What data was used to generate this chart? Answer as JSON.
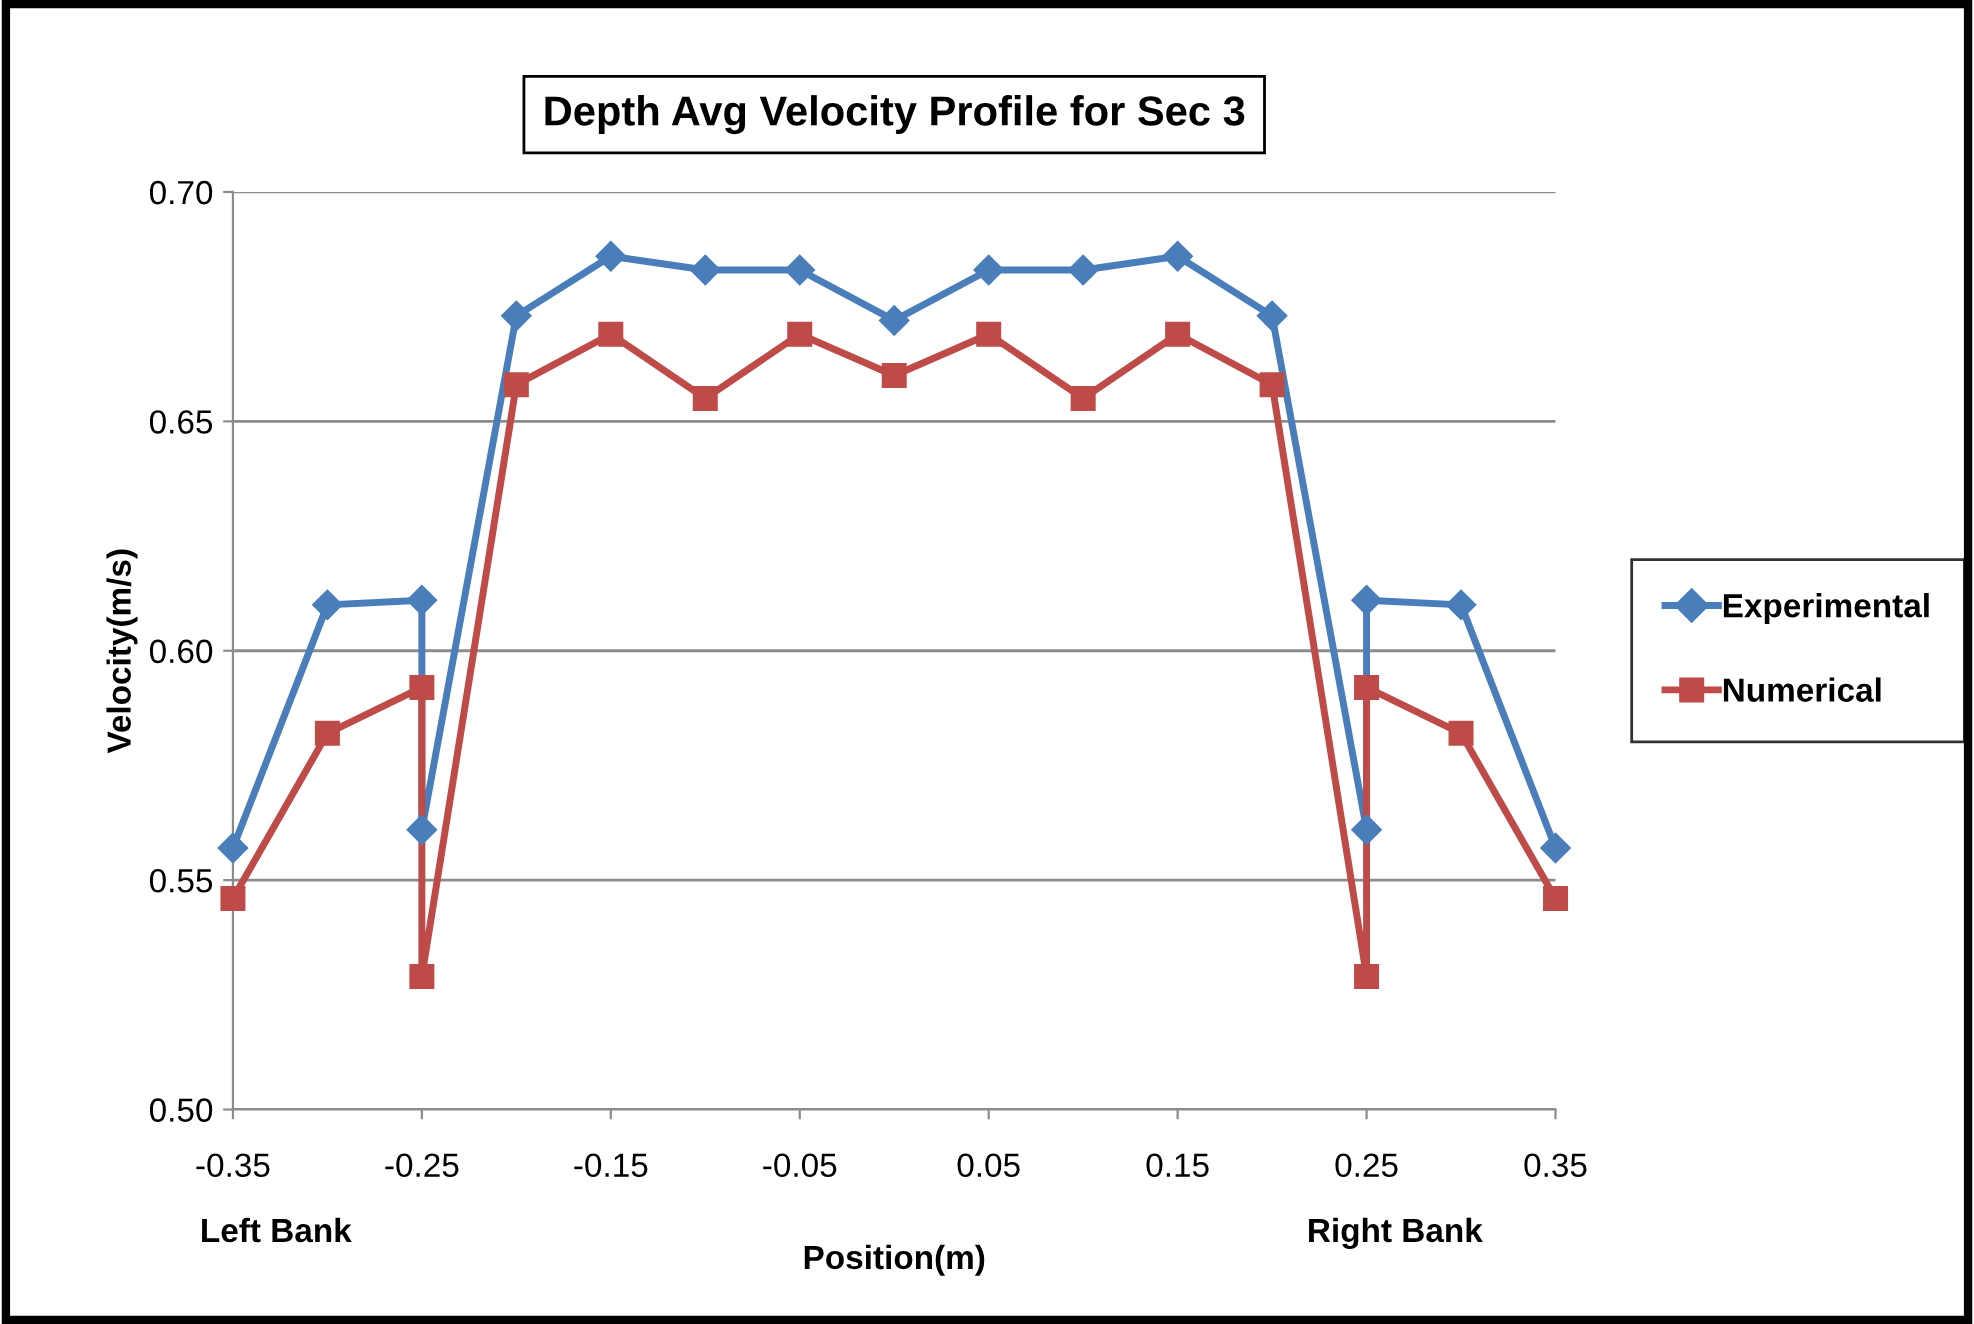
{
  "chart_data": {
    "type": "line",
    "title": "Depth Avg Velocity Profile for Sec 3",
    "xlabel": "Position(m)",
    "ylabel": "Velocity(m/s)",
    "annotations": [
      "Left Bank",
      "Right Bank"
    ],
    "x": [
      -0.35,
      -0.3,
      -0.25,
      -0.25,
      -0.2,
      -0.15,
      -0.1,
      -0.05,
      0,
      0.05,
      0.1,
      0.15,
      0.2,
      0.25,
      0.25,
      0.3,
      0.35
    ],
    "series": [
      {
        "name": "Experimental",
        "color": "#4a7ebb",
        "marker": "diamond",
        "values": [
          0.557,
          0.61,
          0.611,
          0.561,
          0.673,
          0.686,
          0.683,
          0.683,
          0.672,
          0.683,
          0.683,
          0.686,
          0.673,
          0.561,
          0.611,
          0.61,
          0.557
        ]
      },
      {
        "name": "Numerical",
        "color": "#be4b48",
        "marker": "square",
        "values": [
          0.546,
          0.582,
          0.592,
          0.529,
          0.658,
          0.669,
          0.655,
          0.669,
          0.66,
          0.669,
          0.655,
          0.669,
          0.658,
          0.529,
          0.592,
          0.582,
          0.546
        ]
      }
    ],
    "xlim": [
      -0.35,
      0.35
    ],
    "xticks": [
      {
        "value": -0.35,
        "label": "-0.35"
      },
      {
        "value": -0.25,
        "label": "-0.25"
      },
      {
        "value": -0.15,
        "label": "-0.15"
      },
      {
        "value": -0.05,
        "label": "-0.05"
      },
      {
        "value": 0.05,
        "label": "0.05"
      },
      {
        "value": 0.15,
        "label": "0.15"
      },
      {
        "value": 0.25,
        "label": "0.25"
      },
      {
        "value": 0.35,
        "label": "0.35"
      }
    ],
    "ylim": [
      0.5,
      0.7
    ],
    "yticks": [
      {
        "value": 0.5,
        "label": "0.50"
      },
      {
        "value": 0.55,
        "label": "0.55"
      },
      {
        "value": 0.6,
        "label": "0.60"
      },
      {
        "value": 0.65,
        "label": "0.65"
      },
      {
        "value": 0.7,
        "label": "0.70"
      }
    ],
    "grid": "y",
    "legend": "right",
    "line_style": "solid"
  }
}
